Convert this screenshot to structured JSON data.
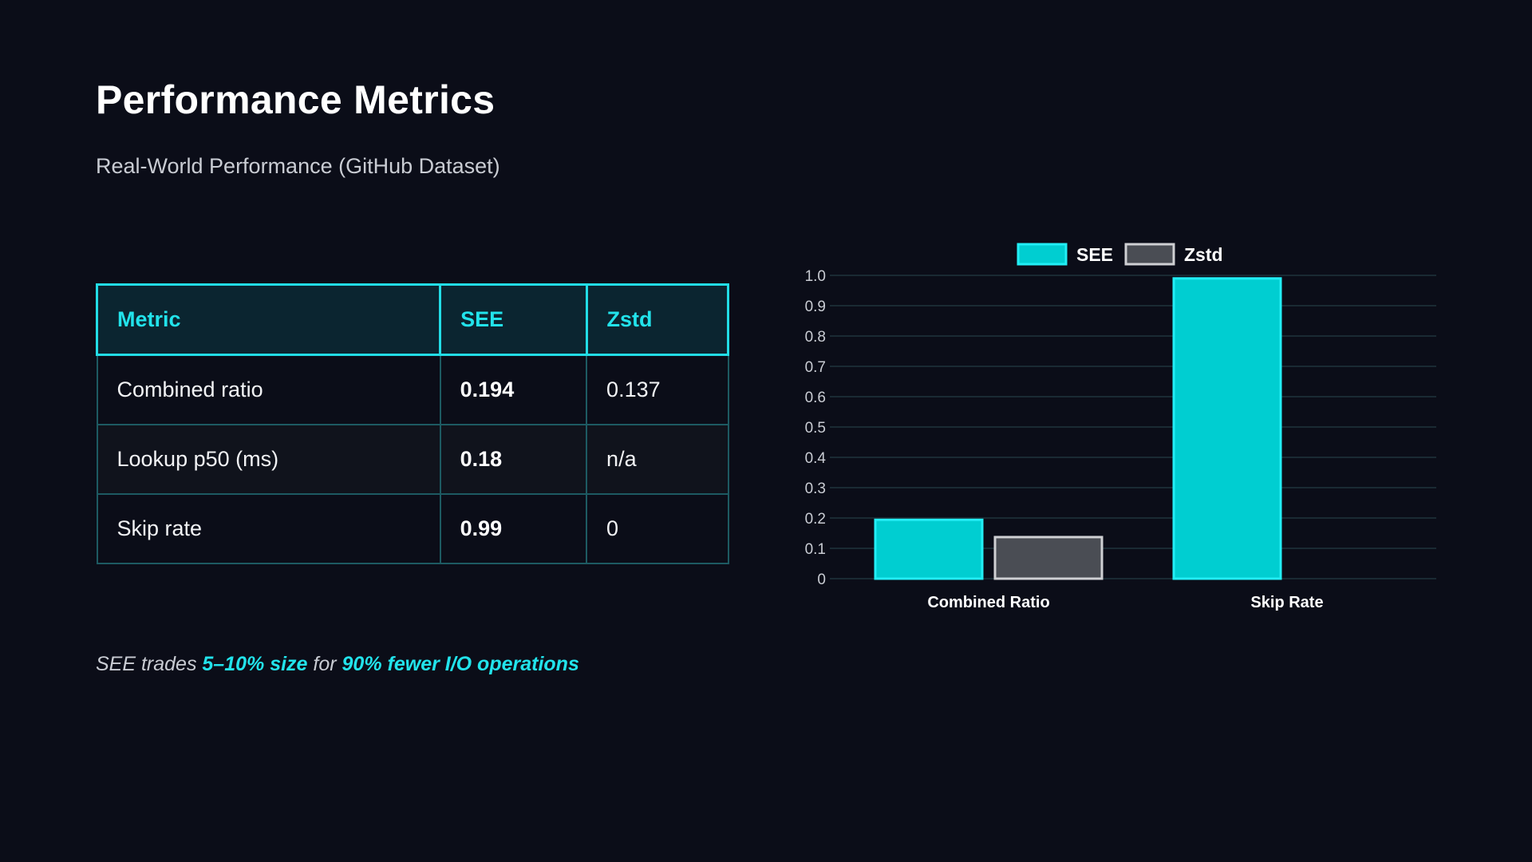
{
  "header": {
    "title": "Performance Metrics",
    "subtitle": "Real-World Performance (GitHub Dataset)"
  },
  "table": {
    "columns": [
      "Metric",
      "SEE",
      "Zstd"
    ],
    "rows": [
      {
        "metric": "Combined ratio",
        "see": "0.194",
        "zstd": "0.137"
      },
      {
        "metric": "Lookup p50 (ms)",
        "see": "0.18",
        "zstd": "n/a"
      },
      {
        "metric": "Skip rate",
        "see": "0.99",
        "zstd": "0"
      }
    ]
  },
  "footnote": {
    "part1": "SEE trades ",
    "highlight1": "5–10% size",
    "part2": " for ",
    "highlight2": "90% fewer I/O operations"
  },
  "colors": {
    "background": "#0b0d18",
    "accent": "#22e3eb",
    "see_fill": "#00ced1",
    "see_border": "#22eef5",
    "zstd_fill": "#4a4d54",
    "zstd_border": "#cfd0d3",
    "grid": "#1a2a33"
  },
  "chart_data": {
    "type": "bar",
    "title": "",
    "xlabel": "",
    "ylabel": "",
    "categories": [
      "Combined Ratio",
      "Skip Rate"
    ],
    "series": [
      {
        "name": "SEE",
        "values": [
          0.194,
          0.99
        ]
      },
      {
        "name": "Zstd",
        "values": [
          0.137,
          null
        ]
      }
    ],
    "ylim": [
      0,
      1.0
    ],
    "yticks": [
      "0",
      "0.1",
      "0.2",
      "0.3",
      "0.4",
      "0.5",
      "0.6",
      "0.7",
      "0.8",
      "0.9",
      "1.0"
    ],
    "grid": true,
    "legend": "top-center"
  }
}
